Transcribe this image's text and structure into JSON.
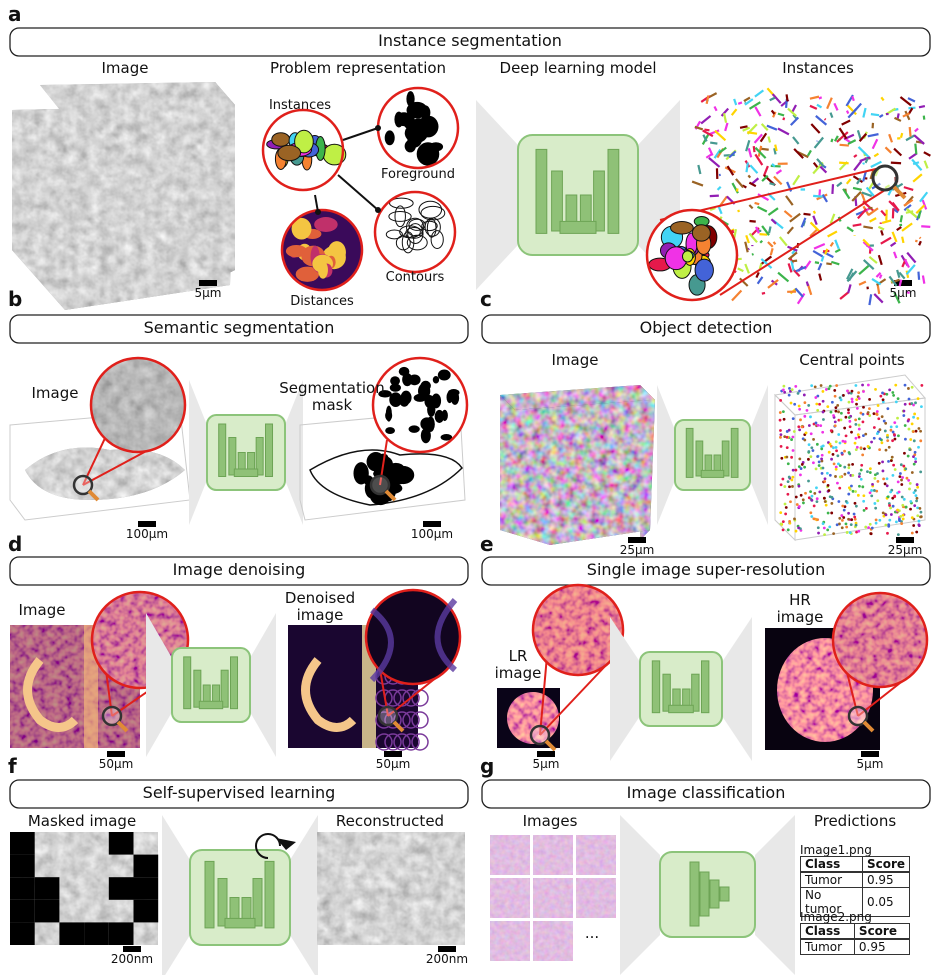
{
  "a": {
    "letter": "a",
    "title": "Instance segmentation",
    "image": "Image",
    "representation": "Problem representation",
    "model": "Deep learning model",
    "instances": "Instances",
    "rep_labels": {
      "instances": "Instances",
      "foreground": "Foreground",
      "contours": "Contours",
      "distances": "Distances"
    },
    "scale_image": "5µm",
    "scale_instances": "5µm"
  },
  "b": {
    "letter": "b",
    "title": "Semantic segmentation",
    "image": "Image",
    "mask": "Segmentation mask",
    "scale_image": "100µm",
    "scale_mask": "100µm"
  },
  "c": {
    "letter": "c",
    "title": "Object detection",
    "image": "Image",
    "points": "Central points",
    "scale_image": "25µm",
    "scale_points": "25µm"
  },
  "d": {
    "letter": "d",
    "title": "Image denoising",
    "image": "Image",
    "denoised": "Denoised image",
    "scale_image": "50µm",
    "scale_denoised": "50µm"
  },
  "e": {
    "letter": "e",
    "title": "Single image super-resolution",
    "lr": "LR image",
    "hr": "HR image",
    "scale_lr": "5µm",
    "scale_hr": "5µm"
  },
  "f": {
    "letter": "f",
    "title": "Self-supervised learning",
    "masked": "Masked image",
    "reconstructed": "Reconstructed",
    "scale_masked": "200nm",
    "scale_reconstructed": "200nm"
  },
  "g": {
    "letter": "g",
    "title": "Image classification",
    "images": "Images",
    "ellipsis": "...",
    "predictions": "Predictions",
    "tables": [
      {
        "file": "Image1.png",
        "columns": [
          "Class",
          "Score"
        ],
        "rows": [
          [
            "Tumor",
            "0.95"
          ],
          [
            "No tumor",
            "0.05"
          ]
        ]
      },
      {
        "file": "Image2.png",
        "columns": [
          "Class",
          "Score"
        ],
        "rows": [
          [
            "Tumor",
            "0.95"
          ]
        ]
      }
    ]
  }
}
